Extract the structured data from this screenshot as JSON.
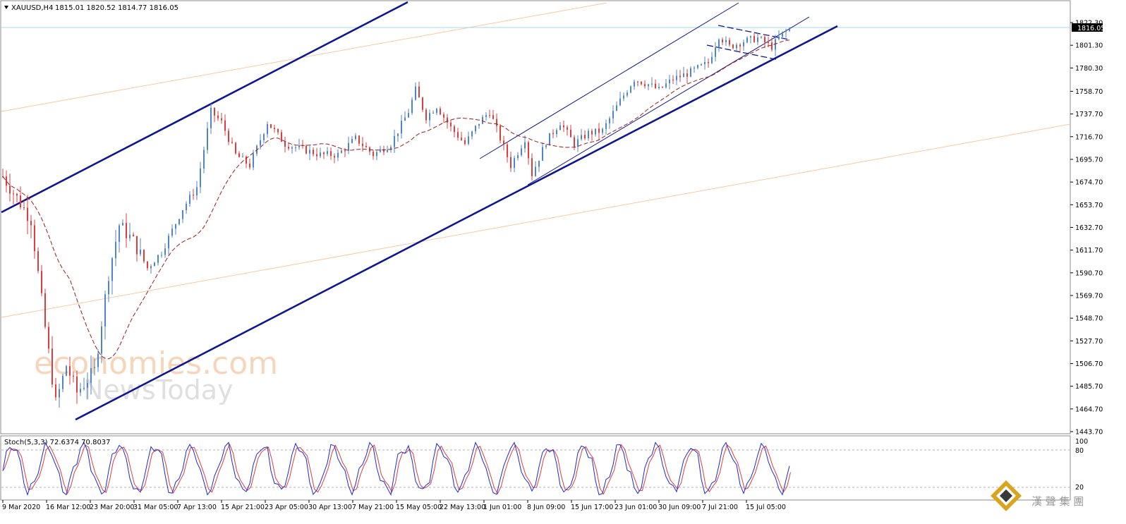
{
  "header": {
    "symbol": "XAUUSD,H4",
    "ohlc": "1815.01 1820.52 1814.77 1816.05"
  },
  "current_price_label": "1816.05",
  "stoch": {
    "label": "Stoch(5,3,3) 72.6374 70.8037",
    "level_labels": [
      "100",
      "80",
      "20"
    ]
  },
  "watermark": {
    "line1": "economies.com",
    "line2": "NewsToday"
  },
  "brand_logo_text": "漢 聲 集 團",
  "colors": {
    "bull": "#4f86c9",
    "bear": "#e03c3c",
    "ma": "#9b1c1c",
    "channel": "#0f168f",
    "fib_line": "#f7c9a0",
    "price_line": "#a5d8ec",
    "stoch_main": "#1a2bd6",
    "stoch_signal": "#e03c3c"
  },
  "chart_data": {
    "type": "line",
    "title": "XAUUSD,H4",
    "x_tick_labels": [
      "9 Mar 2020",
      "16 Mar 12:00",
      "23 Mar 20:00",
      "31 Mar 05:00",
      "7 Apr 13:00",
      "15 Apr 21:00",
      "23 Apr 05:00",
      "30 Apr 13:00",
      "7 May 21:00",
      "15 May 05:00",
      "22 May 13:00",
      "1 Jun 01:00",
      "8 Jun 09:00",
      "15 Jun 17:00",
      "23 Jun 01:00",
      "30 Jun 09:00",
      "7 Jul 21:00",
      "15 Jul 05:00"
    ],
    "y_tick_labels": [
      "1822.30",
      "1801.30",
      "1780.30",
      "1758.70",
      "1737.70",
      "1716.70",
      "1695.70",
      "1674.70",
      "1653.70",
      "1632.70",
      "1611.70",
      "1590.70",
      "1569.70",
      "1548.70",
      "1527.70",
      "1506.70",
      "1485.70",
      "1464.70",
      "1443.70"
    ],
    "y_ticks": [
      1822.3,
      1801.3,
      1780.3,
      1758.7,
      1737.7,
      1716.7,
      1695.7,
      1674.7,
      1653.7,
      1632.7,
      1611.7,
      1590.7,
      1569.7,
      1548.7,
      1527.7,
      1506.7,
      1485.7,
      1464.7,
      1443.7
    ],
    "ylim": [
      1443.7,
      1822.3
    ],
    "current_price": 1816.05,
    "price_anchors": [
      {
        "i": 0,
        "v": 1680
      },
      {
        "i": 4,
        "v": 1660
      },
      {
        "i": 8,
        "v": 1640
      },
      {
        "i": 12,
        "v": 1540
      },
      {
        "i": 15,
        "v": 1470
      },
      {
        "i": 18,
        "v": 1505
      },
      {
        "i": 21,
        "v": 1480
      },
      {
        "i": 26,
        "v": 1500
      },
      {
        "i": 30,
        "v": 1590
      },
      {
        "i": 33,
        "v": 1635
      },
      {
        "i": 37,
        "v": 1620
      },
      {
        "i": 41,
        "v": 1595
      },
      {
        "i": 45,
        "v": 1610
      },
      {
        "i": 51,
        "v": 1650
      },
      {
        "i": 55,
        "v": 1670
      },
      {
        "i": 59,
        "v": 1740
      },
      {
        "i": 62,
        "v": 1730
      },
      {
        "i": 66,
        "v": 1700
      },
      {
        "i": 70,
        "v": 1690
      },
      {
        "i": 75,
        "v": 1730
      },
      {
        "i": 80,
        "v": 1710
      },
      {
        "i": 85,
        "v": 1705
      },
      {
        "i": 90,
        "v": 1700
      },
      {
        "i": 95,
        "v": 1700
      },
      {
        "i": 100,
        "v": 1715
      },
      {
        "i": 105,
        "v": 1700
      },
      {
        "i": 110,
        "v": 1710
      },
      {
        "i": 115,
        "v": 1740
      },
      {
        "i": 117,
        "v": 1760
      },
      {
        "i": 120,
        "v": 1735
      },
      {
        "i": 123,
        "v": 1745
      },
      {
        "i": 127,
        "v": 1725
      },
      {
        "i": 131,
        "v": 1710
      },
      {
        "i": 135,
        "v": 1730
      },
      {
        "i": 138,
        "v": 1740
      },
      {
        "i": 141,
        "v": 1715
      },
      {
        "i": 144,
        "v": 1690
      },
      {
        "i": 148,
        "v": 1715
      },
      {
        "i": 150,
        "v": 1682
      },
      {
        "i": 154,
        "v": 1712
      },
      {
        "i": 158,
        "v": 1730
      },
      {
        "i": 162,
        "v": 1710
      },
      {
        "i": 166,
        "v": 1720
      },
      {
        "i": 170,
        "v": 1722
      },
      {
        "i": 175,
        "v": 1750
      },
      {
        "i": 179,
        "v": 1770
      },
      {
        "i": 183,
        "v": 1765
      },
      {
        "i": 186,
        "v": 1760
      },
      {
        "i": 190,
        "v": 1770
      },
      {
        "i": 194,
        "v": 1775
      },
      {
        "i": 197,
        "v": 1780
      },
      {
        "i": 200,
        "v": 1785
      },
      {
        "i": 203,
        "v": 1810
      },
      {
        "i": 206,
        "v": 1800
      },
      {
        "i": 210,
        "v": 1805
      },
      {
        "i": 214,
        "v": 1808
      },
      {
        "i": 218,
        "v": 1800
      },
      {
        "i": 221,
        "v": 1812
      },
      {
        "i": 223,
        "v": 1816
      }
    ]
  }
}
